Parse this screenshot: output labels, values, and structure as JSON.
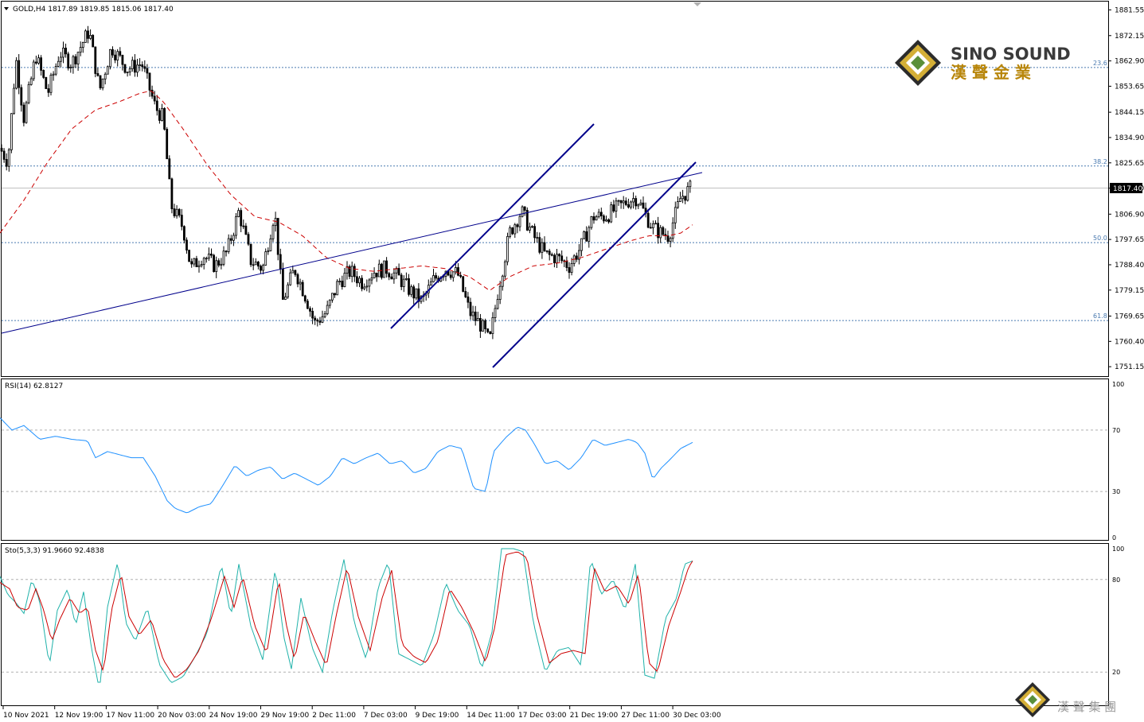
{
  "header": {
    "symbol_text": "GOLD,H4  1817.89 1819.85 1815.06 1817.40",
    "rsi_text": "RSI(14) 62.8127",
    "sto_text": "Sto(5,3,3) 91.9660 92.4838"
  },
  "logo": {
    "brand_en": "SINO SOUND",
    "brand_zh": "漢 聲 金 業",
    "watermark_zh": "漢 聲 集 團"
  },
  "colors": {
    "candle": "#000000",
    "ma": "#cc0000",
    "trendline": "#00008b",
    "rsi": "#1e90ff",
    "sto_main": "#20b2aa",
    "sto_signal": "#cc0000",
    "fib": "#4a7ab0",
    "grid": "#b0b0b0",
    "gold": "#b8860b"
  },
  "chart_data": {
    "type": "candlestick",
    "symbol": "GOLD",
    "timeframe": "H4",
    "current_price": "1817.40",
    "ylim": [
      1748,
      1884
    ],
    "price_axis_ticks": [
      "1881.55",
      "1872.15",
      "1862.90",
      "1853.65",
      "1844.15",
      "1834.90",
      "1825.65",
      "1816.40",
      "1806.90",
      "1797.65",
      "1788.40",
      "1779.15",
      "1769.65",
      "1760.40",
      "1751.15"
    ],
    "time_axis_labels": [
      "10 Nov 2021",
      "12 Nov 19:00",
      "17 Nov 11:00",
      "20 Nov 03:00",
      "24 Nov 19:00",
      "29 Nov 19:00",
      "2 Dec 11:00",
      "7 Dec 03:00",
      "9 Dec 19:00",
      "14 Dec 11:00",
      "17 Dec 03:00",
      "21 Dec 19:00",
      "27 Dec 11:00",
      "30 Dec 03:00"
    ],
    "fib_levels": [
      {
        "label": "23.6",
        "price": 1860.5
      },
      {
        "label": "38.2",
        "price": 1824.5
      },
      {
        "label": "50.0",
        "price": 1796.5
      },
      {
        "label": "61.8",
        "price": 1768.0
      }
    ],
    "ma_path": [
      [
        0,
        1800
      ],
      [
        30,
        1812
      ],
      [
        60,
        1826
      ],
      [
        90,
        1838
      ],
      [
        120,
        1845
      ],
      [
        150,
        1848
      ],
      [
        175,
        1851
      ],
      [
        190,
        1852
      ],
      [
        205,
        1848
      ],
      [
        230,
        1838
      ],
      [
        260,
        1825
      ],
      [
        290,
        1814
      ],
      [
        320,
        1806
      ],
      [
        350,
        1804
      ],
      [
        380,
        1799
      ],
      [
        410,
        1791
      ],
      [
        440,
        1787
      ],
      [
        470,
        1786
      ],
      [
        500,
        1787
      ],
      [
        530,
        1788
      ],
      [
        560,
        1787
      ],
      [
        590,
        1784
      ],
      [
        615,
        1779
      ],
      [
        640,
        1784
      ],
      [
        670,
        1788
      ],
      [
        700,
        1789
      ],
      [
        730,
        1791
      ],
      [
        760,
        1794
      ],
      [
        790,
        1797
      ],
      [
        815,
        1799
      ],
      [
        840,
        1799
      ],
      [
        855,
        1800
      ],
      [
        870,
        1803
      ]
    ],
    "candle_keypoints": [
      [
        0,
        1831
      ],
      [
        10,
        1826
      ],
      [
        20,
        1864
      ],
      [
        30,
        1842
      ],
      [
        45,
        1865
      ],
      [
        60,
        1851
      ],
      [
        75,
        1866
      ],
      [
        90,
        1862
      ],
      [
        112,
        1874
      ],
      [
        125,
        1852
      ],
      [
        140,
        1868
      ],
      [
        160,
        1860
      ],
      [
        178,
        1862
      ],
      [
        195,
        1846
      ],
      [
        205,
        1842
      ],
      [
        215,
        1810
      ],
      [
        230,
        1802
      ],
      [
        240,
        1787
      ],
      [
        255,
        1792
      ],
      [
        270,
        1788
      ],
      [
        285,
        1793
      ],
      [
        300,
        1808
      ],
      [
        315,
        1790
      ],
      [
        330,
        1787
      ],
      [
        345,
        1808
      ],
      [
        355,
        1775
      ],
      [
        370,
        1787
      ],
      [
        385,
        1776
      ],
      [
        395,
        1767
      ],
      [
        410,
        1771
      ],
      [
        425,
        1782
      ],
      [
        440,
        1786
      ],
      [
        455,
        1782
      ],
      [
        470,
        1786
      ],
      [
        485,
        1787
      ],
      [
        500,
        1784
      ],
      [
        515,
        1779
      ],
      [
        530,
        1775
      ],
      [
        545,
        1783
      ],
      [
        560,
        1787
      ],
      [
        575,
        1785
      ],
      [
        590,
        1771
      ],
      [
        605,
        1766
      ],
      [
        615,
        1760
      ],
      [
        625,
        1778
      ],
      [
        640,
        1800
      ],
      [
        655,
        1808
      ],
      [
        670,
        1799
      ],
      [
        685,
        1792
      ],
      [
        700,
        1791
      ],
      [
        715,
        1788
      ],
      [
        730,
        1795
      ],
      [
        745,
        1806
      ],
      [
        760,
        1806
      ],
      [
        775,
        1809
      ],
      [
        790,
        1812
      ],
      [
        800,
        1813
      ],
      [
        810,
        1807
      ],
      [
        820,
        1802
      ],
      [
        830,
        1800
      ],
      [
        840,
        1799
      ],
      [
        855,
        1813
      ],
      [
        870,
        1817
      ]
    ],
    "rsi": {
      "period": 14,
      "value": "62.8127",
      "ticks": [
        "100",
        "70",
        "30",
        "0"
      ],
      "levels": [
        70,
        30
      ],
      "keypoints": [
        [
          0,
          78
        ],
        [
          15,
          70
        ],
        [
          30,
          73
        ],
        [
          50,
          64
        ],
        [
          70,
          66
        ],
        [
          90,
          64
        ],
        [
          110,
          63
        ],
        [
          120,
          52
        ],
        [
          135,
          56
        ],
        [
          150,
          54
        ],
        [
          165,
          52
        ],
        [
          180,
          52
        ],
        [
          195,
          40
        ],
        [
          210,
          24
        ],
        [
          220,
          19
        ],
        [
          235,
          16
        ],
        [
          250,
          20
        ],
        [
          265,
          22
        ],
        [
          280,
          34
        ],
        [
          295,
          47
        ],
        [
          310,
          40
        ],
        [
          325,
          44
        ],
        [
          340,
          46
        ],
        [
          355,
          38
        ],
        [
          370,
          42
        ],
        [
          385,
          38
        ],
        [
          400,
          34
        ],
        [
          415,
          40
        ],
        [
          430,
          52
        ],
        [
          445,
          48
        ],
        [
          460,
          52
        ],
        [
          475,
          55
        ],
        [
          490,
          48
        ],
        [
          505,
          50
        ],
        [
          520,
          42
        ],
        [
          535,
          45
        ],
        [
          550,
          56
        ],
        [
          565,
          60
        ],
        [
          580,
          58
        ],
        [
          595,
          32
        ],
        [
          610,
          30
        ],
        [
          620,
          56
        ],
        [
          635,
          65
        ],
        [
          650,
          72
        ],
        [
          660,
          70
        ],
        [
          670,
          62
        ],
        [
          685,
          48
        ],
        [
          700,
          50
        ],
        [
          715,
          44
        ],
        [
          730,
          52
        ],
        [
          745,
          64
        ],
        [
          760,
          60
        ],
        [
          775,
          62
        ],
        [
          790,
          64
        ],
        [
          800,
          62
        ],
        [
          810,
          55
        ],
        [
          820,
          38
        ],
        [
          830,
          45
        ],
        [
          840,
          50
        ],
        [
          855,
          58
        ],
        [
          870,
          62
        ]
      ]
    },
    "stochastic": {
      "params": "5,3,3",
      "main": "91.9660",
      "signal": "92.4838",
      "ticks": [
        "100",
        "80",
        "20"
      ],
      "levels": [
        80,
        20
      ],
      "main_keypoints": [
        [
          0,
          82
        ],
        [
          10,
          70
        ],
        [
          20,
          65
        ],
        [
          30,
          58
        ],
        [
          40,
          80
        ],
        [
          50,
          66
        ],
        [
          62,
          24
        ],
        [
          72,
          60
        ],
        [
          85,
          74
        ],
        [
          95,
          50
        ],
        [
          105,
          72
        ],
        [
          115,
          35
        ],
        [
          125,
          8
        ],
        [
          135,
          62
        ],
        [
          148,
          92
        ],
        [
          158,
          52
        ],
        [
          170,
          40
        ],
        [
          185,
          62
        ],
        [
          200,
          25
        ],
        [
          215,
          13
        ],
        [
          230,
          17
        ],
        [
          245,
          30
        ],
        [
          260,
          45
        ],
        [
          278,
          90
        ],
        [
          290,
          56
        ],
        [
          300,
          90
        ],
        [
          315,
          50
        ],
        [
          330,
          28
        ],
        [
          346,
          88
        ],
        [
          356,
          44
        ],
        [
          366,
          22
        ],
        [
          378,
          68
        ],
        [
          392,
          36
        ],
        [
          405,
          20
        ],
        [
          418,
          60
        ],
        [
          432,
          93
        ],
        [
          445,
          52
        ],
        [
          460,
          28
        ],
        [
          475,
          75
        ],
        [
          488,
          92
        ],
        [
          500,
          32
        ],
        [
          515,
          28
        ],
        [
          530,
          24
        ],
        [
          545,
          44
        ],
        [
          560,
          78
        ],
        [
          575,
          60
        ],
        [
          590,
          50
        ],
        [
          605,
          22
        ],
        [
          618,
          46
        ],
        [
          630,
          100
        ],
        [
          645,
          100
        ],
        [
          657,
          98
        ],
        [
          670,
          52
        ],
        [
          685,
          20
        ],
        [
          700,
          34
        ],
        [
          715,
          36
        ],
        [
          730,
          24
        ],
        [
          742,
          94
        ],
        [
          755,
          70
        ],
        [
          770,
          80
        ],
        [
          785,
          60
        ],
        [
          798,
          90
        ],
        [
          810,
          18
        ],
        [
          822,
          16
        ],
        [
          836,
          55
        ],
        [
          850,
          68
        ],
        [
          860,
          90
        ],
        [
          870,
          92
        ]
      ],
      "signal_keypoints": [
        [
          0,
          78
        ],
        [
          12,
          74
        ],
        [
          22,
          62
        ],
        [
          35,
          60
        ],
        [
          45,
          74
        ],
        [
          55,
          60
        ],
        [
          65,
          40
        ],
        [
          75,
          54
        ],
        [
          88,
          68
        ],
        [
          100,
          58
        ],
        [
          110,
          62
        ],
        [
          120,
          34
        ],
        [
          130,
          20
        ],
        [
          140,
          60
        ],
        [
          152,
          84
        ],
        [
          162,
          56
        ],
        [
          175,
          44
        ],
        [
          190,
          54
        ],
        [
          205,
          28
        ],
        [
          220,
          16
        ],
        [
          235,
          22
        ],
        [
          250,
          34
        ],
        [
          265,
          54
        ],
        [
          282,
          82
        ],
        [
          294,
          62
        ],
        [
          305,
          82
        ],
        [
          320,
          50
        ],
        [
          335,
          32
        ],
        [
          350,
          80
        ],
        [
          360,
          50
        ],
        [
          370,
          28
        ],
        [
          382,
          58
        ],
        [
          396,
          40
        ],
        [
          410,
          24
        ],
        [
          422,
          56
        ],
        [
          436,
          88
        ],
        [
          450,
          56
        ],
        [
          465,
          34
        ],
        [
          480,
          68
        ],
        [
          492,
          86
        ],
        [
          505,
          38
        ],
        [
          520,
          30
        ],
        [
          535,
          26
        ],
        [
          550,
          40
        ],
        [
          565,
          74
        ],
        [
          580,
          62
        ],
        [
          595,
          46
        ],
        [
          610,
          26
        ],
        [
          622,
          50
        ],
        [
          635,
          96
        ],
        [
          650,
          98
        ],
        [
          662,
          94
        ],
        [
          675,
          56
        ],
        [
          690,
          26
        ],
        [
          705,
          32
        ],
        [
          720,
          34
        ],
        [
          735,
          32
        ],
        [
          746,
          88
        ],
        [
          760,
          72
        ],
        [
          775,
          76
        ],
        [
          790,
          64
        ],
        [
          802,
          84
        ],
        [
          815,
          26
        ],
        [
          826,
          20
        ],
        [
          840,
          50
        ],
        [
          855,
          72
        ],
        [
          865,
          88
        ],
        [
          870,
          92
        ]
      ]
    }
  }
}
